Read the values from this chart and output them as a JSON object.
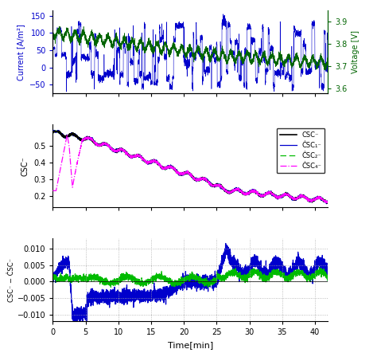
{
  "subplot1": {
    "ylabel_left": "Current [A/m²]",
    "ylabel_right": "Voltage [V]",
    "ylim_left": [
      -75,
      165
    ],
    "ylim_right": [
      3.58,
      3.95
    ],
    "yticks_left": [
      -50,
      0,
      50,
      100,
      150
    ],
    "yticks_right": [
      3.6,
      3.7,
      3.8,
      3.9
    ],
    "color_current": "#0000cc",
    "color_voltage": "#006400"
  },
  "subplot2": {
    "ylabel": "CSC⁻",
    "ylim": [
      0.13,
      0.63
    ],
    "yticks": [
      0.2,
      0.3,
      0.4,
      0.5
    ],
    "color_black": "#000000",
    "color_blue": "#0000cc",
    "color_green": "#00bb00",
    "color_magenta": "#ff00ff"
  },
  "subplot3": {
    "ylabel": "CSC⁻ − ĈSC⁻",
    "ylim": [
      -0.012,
      0.013
    ],
    "yticks": [
      -0.01,
      -0.005,
      0,
      0.005,
      0.01
    ],
    "color_blue": "#0000cc",
    "color_green": "#00bb00",
    "xlabel": "Time[min]"
  },
  "xlim": [
    0,
    42
  ],
  "xticks": [
    0,
    5,
    10,
    15,
    20,
    25,
    30,
    35,
    40
  ],
  "grid_color": "#aaaaaa",
  "background_color": "#ffffff"
}
